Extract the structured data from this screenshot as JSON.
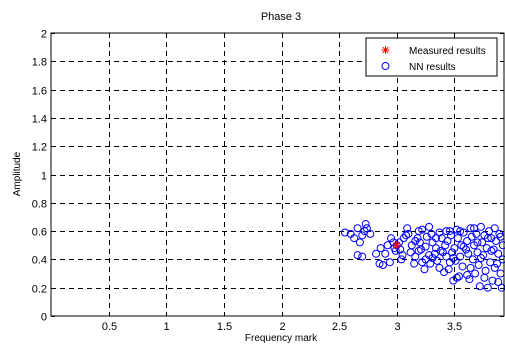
{
  "chart_data": {
    "type": "scatter",
    "title": "Phase 3",
    "xlabel": "Frequency mark",
    "ylabel": "Amplitude",
    "xlim": [
      0,
      3.93
    ],
    "ylim": [
      0,
      2
    ],
    "grid": true,
    "legend_position": "top-right",
    "x_ticks": [
      0.5,
      1,
      1.5,
      2,
      2.5,
      3,
      3.5
    ],
    "x_tick_labels": [
      "0.5",
      "1",
      "1.5",
      "2",
      "2.5",
      "3",
      "3.5"
    ],
    "y_ticks": [
      0,
      0.2,
      0.4,
      0.6,
      0.8,
      1,
      1.2,
      1.4,
      1.6,
      1.8,
      2
    ],
    "y_tick_labels": [
      "0",
      "0.2",
      "0.4",
      "0.6",
      "0.8",
      "1",
      "1.2",
      "1.4",
      "1.6",
      "1.8",
      "2"
    ],
    "series": [
      {
        "name": "Measured results",
        "marker": "asterisk",
        "color": "#ff0000",
        "points": [
          [
            3.0,
            0.5
          ]
        ]
      },
      {
        "name": "NN results",
        "marker": "circle",
        "color": "#0000ff",
        "points": [
          [
            2.55,
            0.59
          ],
          [
            2.6,
            0.58
          ],
          [
            2.63,
            0.55
          ],
          [
            2.66,
            0.62
          ],
          [
            2.68,
            0.52
          ],
          [
            2.7,
            0.57
          ],
          [
            2.66,
            0.43
          ],
          [
            2.7,
            0.42
          ],
          [
            2.72,
            0.6
          ],
          [
            2.74,
            0.62
          ],
          [
            2.77,
            0.58
          ],
          [
            2.73,
            0.65
          ],
          [
            2.82,
            0.44
          ],
          [
            2.85,
            0.37
          ],
          [
            2.88,
            0.36
          ],
          [
            2.86,
            0.48
          ],
          [
            2.9,
            0.44
          ],
          [
            2.92,
            0.5
          ],
          [
            2.94,
            0.38
          ],
          [
            2.95,
            0.55
          ],
          [
            2.97,
            0.52
          ],
          [
            2.98,
            0.48
          ],
          [
            2.99,
            0.46
          ],
          [
            3.0,
            0.5
          ],
          [
            3.02,
            0.52
          ],
          [
            3.03,
            0.47
          ],
          [
            3.04,
            0.4
          ],
          [
            3.05,
            0.43
          ],
          [
            3.06,
            0.55
          ],
          [
            3.08,
            0.57
          ],
          [
            3.09,
            0.62
          ],
          [
            3.1,
            0.58
          ],
          [
            3.12,
            0.45
          ],
          [
            3.13,
            0.5
          ],
          [
            3.15,
            0.37
          ],
          [
            3.16,
            0.42
          ],
          [
            3.18,
            0.55
          ],
          [
            3.19,
            0.6
          ],
          [
            3.2,
            0.52
          ],
          [
            3.21,
            0.47
          ],
          [
            3.22,
            0.61
          ],
          [
            3.24,
            0.33
          ],
          [
            3.25,
            0.4
          ],
          [
            3.26,
            0.56
          ],
          [
            3.28,
            0.43
          ],
          [
            3.29,
            0.37
          ],
          [
            3.3,
            0.58
          ],
          [
            3.31,
            0.52
          ],
          [
            3.33,
            0.44
          ],
          [
            3.34,
            0.48
          ],
          [
            3.35,
            0.39
          ],
          [
            3.37,
            0.59
          ],
          [
            3.38,
            0.46
          ],
          [
            3.39,
            0.55
          ],
          [
            3.41,
            0.31
          ],
          [
            3.42,
            0.5
          ],
          [
            3.43,
            0.42
          ],
          [
            3.44,
            0.53
          ],
          [
            3.45,
            0.33
          ],
          [
            3.46,
            0.6
          ],
          [
            3.47,
            0.57
          ],
          [
            3.48,
            0.45
          ],
          [
            3.49,
            0.25
          ],
          [
            3.5,
            0.48
          ],
          [
            3.51,
            0.39
          ],
          [
            3.52,
            0.61
          ],
          [
            3.53,
            0.55
          ],
          [
            3.54,
            0.28
          ],
          [
            3.55,
            0.42
          ],
          [
            3.56,
            0.5
          ],
          [
            3.57,
            0.35
          ],
          [
            3.58,
            0.59
          ],
          [
            3.6,
            0.47
          ],
          [
            3.61,
            0.53
          ],
          [
            3.62,
            0.44
          ],
          [
            3.63,
            0.26
          ],
          [
            3.64,
            0.62
          ],
          [
            3.65,
            0.56
          ],
          [
            3.66,
            0.4
          ],
          [
            3.67,
            0.5
          ],
          [
            3.68,
            0.3
          ],
          [
            3.69,
            0.58
          ],
          [
            3.7,
            0.45
          ],
          [
            3.71,
            0.36
          ],
          [
            3.72,
            0.21
          ],
          [
            3.73,
            0.63
          ],
          [
            3.74,
            0.52
          ],
          [
            3.75,
            0.43
          ],
          [
            3.76,
            0.57
          ],
          [
            3.77,
            0.32
          ],
          [
            3.78,
            0.48
          ],
          [
            3.79,
            0.2
          ],
          [
            3.8,
            0.6
          ],
          [
            3.81,
            0.38
          ],
          [
            3.82,
            0.55
          ],
          [
            3.83,
            0.25
          ],
          [
            3.84,
            0.47
          ],
          [
            3.85,
            0.62
          ],
          [
            3.86,
            0.53
          ],
          [
            3.87,
            0.37
          ],
          [
            3.88,
            0.44
          ],
          [
            3.89,
            0.58
          ],
          [
            3.9,
            0.3
          ],
          [
            3.91,
            0.2
          ],
          [
            3.92,
            0.5
          ],
          [
            3.92,
            0.4
          ],
          [
            3.9,
            0.56
          ],
          [
            3.88,
            0.24
          ],
          [
            3.85,
            0.34
          ],
          [
            3.82,
            0.46
          ],
          [
            3.79,
            0.55
          ],
          [
            3.76,
            0.27
          ],
          [
            3.73,
            0.41
          ],
          [
            3.7,
            0.52
          ],
          [
            3.67,
            0.62
          ],
          [
            3.64,
            0.34
          ],
          [
            3.61,
            0.29
          ],
          [
            3.58,
            0.49
          ],
          [
            3.55,
            0.6
          ],
          [
            3.52,
            0.27
          ],
          [
            3.49,
            0.41
          ],
          [
            3.46,
            0.38
          ],
          [
            3.43,
            0.6
          ],
          [
            3.4,
            0.45
          ],
          [
            3.37,
            0.34
          ],
          [
            3.34,
            0.55
          ],
          [
            3.31,
            0.41
          ],
          [
            3.28,
            0.63
          ],
          [
            3.25,
            0.49
          ],
          [
            3.22,
            0.38
          ],
          [
            3.19,
            0.46
          ],
          [
            3.16,
            0.53
          ]
        ]
      }
    ]
  }
}
